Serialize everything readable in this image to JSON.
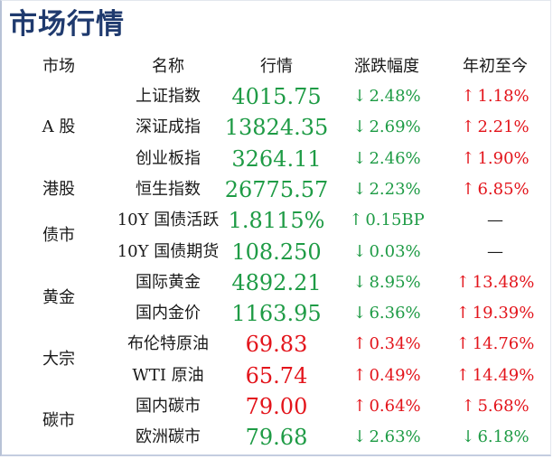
{
  "title": "市场行情",
  "headers": {
    "market": "市场",
    "name": "名称",
    "quote": "行情",
    "change": "涨跌幅度",
    "ytd": "年初至今"
  },
  "colors": {
    "up": "#e3141b",
    "down": "#1e9b45",
    "title": "#1f3a6e"
  },
  "groups": [
    {
      "label": "A 股"
    },
    {
      "label": "港股"
    },
    {
      "label": "债市"
    },
    {
      "label": "黄金"
    },
    {
      "label": "大宗"
    },
    {
      "label": "碳市"
    }
  ],
  "rows": [
    {
      "name": "上证指数",
      "value": "4015.75",
      "value_dir": "down",
      "change": "2.48%",
      "change_dir": "down",
      "ytd": "1.18%",
      "ytd_dir": "up"
    },
    {
      "name": "深证成指",
      "value": "13824.35",
      "value_dir": "down",
      "change": "2.69%",
      "change_dir": "down",
      "ytd": "2.21%",
      "ytd_dir": "up"
    },
    {
      "name": "创业板指",
      "value": "3264.11",
      "value_dir": "down",
      "change": "2.46%",
      "change_dir": "down",
      "ytd": "1.90%",
      "ytd_dir": "up"
    },
    {
      "name": "恒生指数",
      "value": "26775.57",
      "value_dir": "down",
      "change": "2.23%",
      "change_dir": "down",
      "ytd": "6.85%",
      "ytd_dir": "up"
    },
    {
      "name": "10Y 国债活跃",
      "value": "1.8115%",
      "value_dir": "down",
      "change": "0.15BP",
      "change_dir": "up-green",
      "ytd": "—",
      "ytd_dir": "none"
    },
    {
      "name": "10Y 国债期货",
      "value": "108.250",
      "value_dir": "down",
      "change": "0.03%",
      "change_dir": "down",
      "ytd": "—",
      "ytd_dir": "none"
    },
    {
      "name": "国际黄金",
      "value": "4892.21",
      "value_dir": "down",
      "change": "8.95%",
      "change_dir": "down",
      "ytd": "13.48%",
      "ytd_dir": "up"
    },
    {
      "name": "国内金价",
      "value": "1163.95",
      "value_dir": "down",
      "change": "6.36%",
      "change_dir": "down",
      "ytd": "19.39%",
      "ytd_dir": "up"
    },
    {
      "name": "布伦特原油",
      "value": "69.83",
      "value_dir": "up",
      "change": "0.34%",
      "change_dir": "up",
      "ytd": "14.76%",
      "ytd_dir": "up"
    },
    {
      "name": "WTI 原油",
      "value": "65.74",
      "value_dir": "up",
      "change": "0.49%",
      "change_dir": "up",
      "ytd": "14.49%",
      "ytd_dir": "up"
    },
    {
      "name": "国内碳市",
      "value": "79.00",
      "value_dir": "up",
      "change": "0.64%",
      "change_dir": "up",
      "ytd": "5.68%",
      "ytd_dir": "up"
    },
    {
      "name": "欧洲碳市",
      "value": "79.68",
      "value_dir": "down",
      "change": "2.63%",
      "change_dir": "down",
      "ytd": "6.18%",
      "ytd_dir": "down"
    }
  ]
}
